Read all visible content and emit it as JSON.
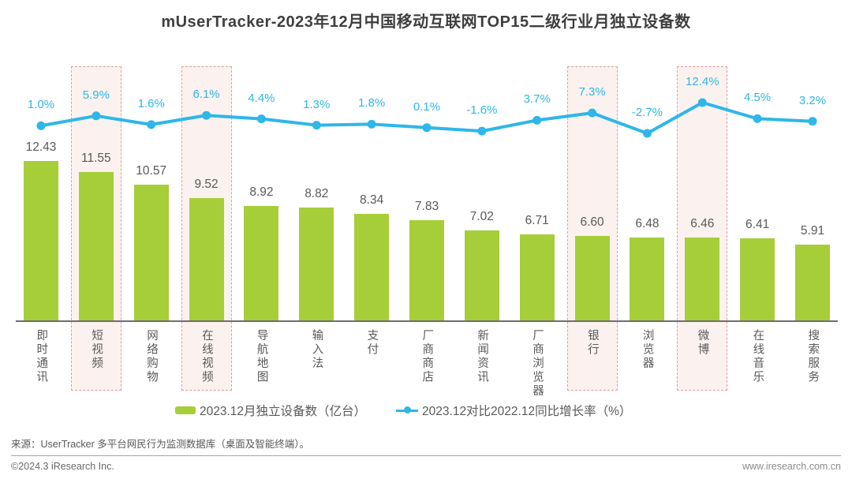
{
  "title": "mUserTracker-2023年12月中国移动互联网TOP15二级行业月独立设备数",
  "chart_data": {
    "type": "bar+line",
    "categories": [
      "即时通讯",
      "短视频",
      "网络购物",
      "在线视频",
      "导航地图",
      "输入法",
      "支付",
      "厂商商店",
      "新闻资讯",
      "厂商浏览器",
      "银行",
      "浏览器",
      "微博",
      "在线音乐",
      "搜索服务"
    ],
    "series": [
      {
        "name": "2023.12月独立设备数（亿台）",
        "type": "bar",
        "values": [
          12.43,
          11.55,
          10.57,
          9.52,
          8.92,
          8.82,
          8.34,
          7.83,
          7.02,
          6.71,
          6.6,
          6.48,
          6.46,
          6.41,
          5.91
        ],
        "labels": [
          "12.43",
          "11.55",
          "10.57",
          "9.52",
          "8.92",
          "8.82",
          "8.34",
          "7.83",
          "7.02",
          "6.71",
          "6.60",
          "6.48",
          "6.46",
          "6.41",
          "5.91"
        ],
        "color": "#a6ce39"
      },
      {
        "name": "2023.12对比2022.12同比增长率（%）",
        "type": "line",
        "values": [
          1.0,
          5.9,
          1.6,
          6.1,
          4.4,
          1.3,
          1.8,
          0.1,
          -1.6,
          3.7,
          7.3,
          -2.7,
          12.4,
          4.5,
          3.2
        ],
        "labels": [
          "1.0%",
          "5.9%",
          "1.6%",
          "6.1%",
          "4.4%",
          "1.3%",
          "1.8%",
          "0.1%",
          "-1.6%",
          "3.7%",
          "7.3%",
          "-2.7%",
          "12.4%",
          "4.5%",
          "3.2%"
        ],
        "color": "#2eb7e8"
      }
    ],
    "highlighted_indices": [
      1,
      3,
      10,
      12
    ],
    "highlighted_categories": [
      "短视频",
      "在线视频",
      "银行",
      "微博"
    ],
    "highlight_fill": "#fbf2ef",
    "highlight_border": "#e09e9a",
    "value_label_color": "#595959",
    "legend_position": "bottom",
    "grid": false
  },
  "legend": {
    "bar_label": "2023.12月独立设备数（亿台）",
    "line_label": "2023.12对比2022.12同比增长率（%）"
  },
  "source": "来源：UserTracker 多平台网民行为监测数据库（桌面及智能终端）。",
  "footer": {
    "left": "©2024.3 iResearch Inc.",
    "right": "www.iresearch.com.cn"
  }
}
